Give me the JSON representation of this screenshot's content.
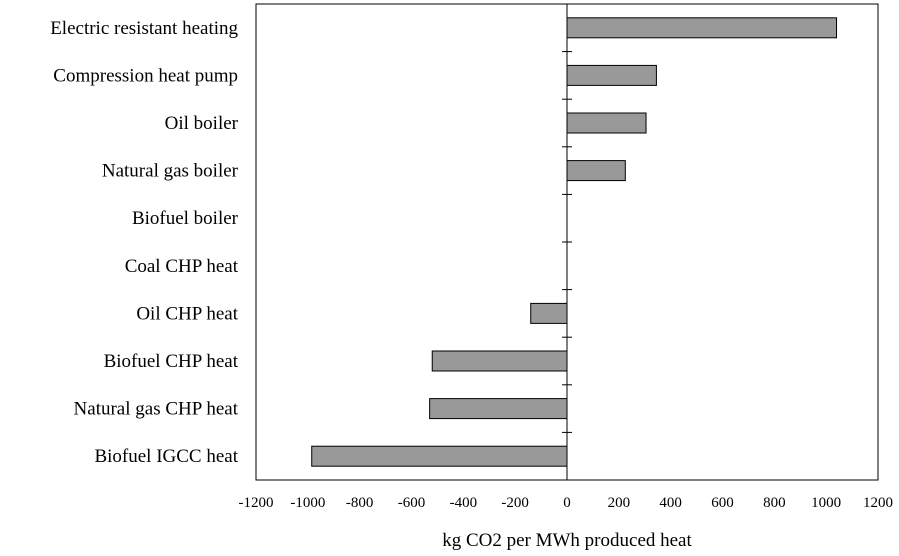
{
  "chart_data": {
    "type": "bar",
    "orientation": "horizontal",
    "categories": [
      "Electric resistant heating",
      "Compression heat pump",
      "Oil boiler",
      "Natural gas boiler",
      "Biofuel boiler",
      "Coal CHP heat",
      "Oil CHP heat",
      "Biofuel CHP heat",
      "Natural gas CHP heat",
      "Biofuel IGCC heat"
    ],
    "values": [
      1040,
      345,
      305,
      225,
      0,
      0,
      -140,
      -520,
      -530,
      -985
    ],
    "xlabel": "kg CO2 per MWh produced heat",
    "xlim": [
      -1200,
      1200
    ],
    "xticks": [
      -1200,
      -1000,
      -800,
      -600,
      -400,
      -200,
      0,
      200,
      400,
      600,
      800,
      1000,
      1200
    ],
    "grid": false,
    "legend": "none",
    "colors": {
      "bar_fill": "#999999",
      "bar_stroke": "#000000",
      "axis": "#000000"
    }
  }
}
